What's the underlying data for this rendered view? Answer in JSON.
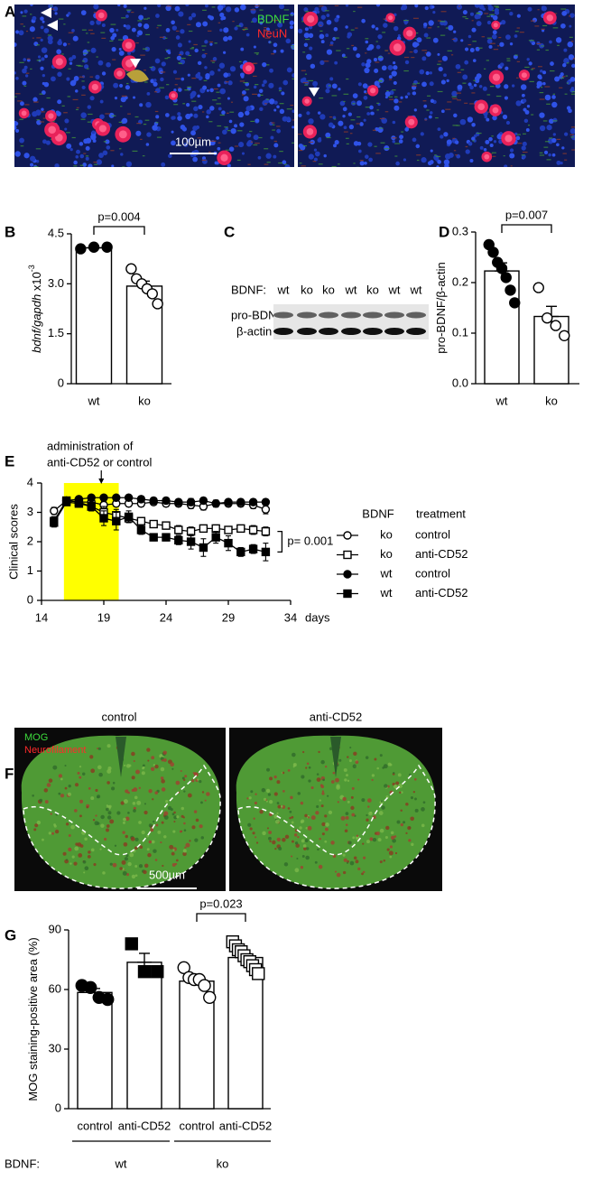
{
  "panel_a": {
    "label": "A",
    "stains": [
      "BDNF",
      "NeuN"
    ],
    "stain_colors": [
      "#3ddc3d",
      "#ff2a2a"
    ],
    "scale_bar": "100µm"
  },
  "blot_c": {
    "label": "C",
    "header": "BDNF:",
    "lanes": [
      "wt",
      "ko",
      "ko",
      "wt",
      "ko",
      "wt",
      "wt"
    ],
    "rows": [
      "pro-BDNF",
      "β-actin"
    ]
  },
  "panel_f": {
    "label": "F",
    "conditions": [
      "control",
      "anti-CD52"
    ],
    "stains": [
      "MOG",
      "Neurofilament"
    ],
    "stain_colors": [
      "#3ddc3d",
      "#ff2a2a"
    ],
    "scale_bar": "500µm"
  },
  "chart_data": [
    {
      "type": "bar",
      "panel": "B",
      "y_label": "bdnf/gapdh",
      "y_label_suffix": " x10",
      "y_label_sup": "-3",
      "categories": [
        "wt",
        "ko"
      ],
      "values": [
        4.08,
        2.93
      ],
      "errors": [
        0.02,
        0.15
      ],
      "points": [
        [
          4.05,
          4.1,
          4.1
        ],
        [
          3.45,
          3.15,
          3.0,
          2.85,
          2.7,
          2.4
        ]
      ],
      "filled": [
        true,
        false
      ],
      "markers": [
        "circle",
        "circle"
      ],
      "color": "#000000",
      "ylim": [
        0,
        4.5
      ],
      "yticks": [
        0,
        1.5,
        {
          "value": 3,
          "label": "3.0"
        },
        4.5
      ],
      "p_value": "p=0.004",
      "p_pair": [
        0,
        1
      ]
    },
    {
      "type": "bar",
      "panel": "D",
      "y_label": "pro-BDNF/β-actin",
      "categories": [
        "wt",
        "ko"
      ],
      "values": [
        0.223,
        0.133
      ],
      "errors": [
        0.016,
        0.02
      ],
      "points": [
        [
          0.275,
          0.26,
          0.24,
          0.228,
          0.21,
          0.185,
          0.16
        ],
        [
          0.19,
          0.13,
          0.115,
          0.095
        ]
      ],
      "filled": [
        true,
        false
      ],
      "markers": [
        "circle",
        "circle"
      ],
      "color": "#000000",
      "ylim": [
        0,
        0.3
      ],
      "yticks": [
        {
          "value": 0,
          "label": "0.0"
        },
        0.1,
        0.2,
        0.3
      ],
      "p_value": "p=0.007",
      "p_pair": [
        0,
        1
      ]
    },
    {
      "type": "line",
      "panel": "E",
      "y_label": "Clinical scores",
      "x_unit": "days",
      "annotation": [
        "administration of",
        "anti-CD52 or control"
      ],
      "arrow_x": 18.8,
      "highlight_x": [
        15.8,
        20.2
      ],
      "highlight_color": "#ffff00",
      "legend_headers": [
        "BDNF",
        "treatment"
      ],
      "p_value": "p= 0.001",
      "p_pair": [
        1,
        3
      ],
      "x": [
        15,
        16,
        17,
        18,
        19,
        20,
        21,
        22,
        23,
        24,
        25,
        26,
        27,
        28,
        29,
        30,
        31,
        32
      ],
      "xlim": [
        14,
        34
      ],
      "xticks": [
        14,
        19,
        24,
        29,
        34
      ],
      "ylim": [
        0,
        4
      ],
      "yticks": [
        0,
        1,
        2,
        3,
        4
      ],
      "series": [
        {
          "bdnf": "ko",
          "treatment": "control",
          "marker": "circle",
          "filled": false,
          "color": "#000000",
          "values": [
            3.05,
            3.4,
            3.35,
            3.35,
            3.25,
            3.3,
            3.3,
            3.3,
            3.35,
            3.3,
            3.3,
            3.25,
            3.2,
            3.3,
            3.3,
            3.3,
            3.25,
            3.1
          ],
          "errors": [
            0.12,
            0.08,
            0.1,
            0.1,
            0.12,
            0.1,
            0.1,
            0.1,
            0.1,
            0.1,
            0.1,
            0.12,
            0.12,
            0.1,
            0.1,
            0.1,
            0.12,
            0.15
          ]
        },
        {
          "bdnf": "ko",
          "treatment": "anti-CD52",
          "marker": "square",
          "filled": false,
          "color": "#000000",
          "values": [
            2.7,
            3.4,
            3.35,
            3.2,
            3.0,
            2.9,
            2.8,
            2.7,
            2.6,
            2.55,
            2.4,
            2.35,
            2.45,
            2.45,
            2.4,
            2.45,
            2.4,
            2.35
          ],
          "errors": [
            0.15,
            0.08,
            0.1,
            0.15,
            0.2,
            0.2,
            0.15,
            0.12,
            0.12,
            0.12,
            0.15,
            0.15,
            0.12,
            0.12,
            0.12,
            0.12,
            0.15,
            0.15
          ]
        },
        {
          "bdnf": "wt",
          "treatment": "control",
          "marker": "circle",
          "filled": true,
          "color": "#000000",
          "values": [
            2.7,
            3.4,
            3.45,
            3.5,
            3.5,
            3.5,
            3.5,
            3.45,
            3.4,
            3.4,
            3.35,
            3.35,
            3.4,
            3.3,
            3.35,
            3.35,
            3.35,
            3.35
          ],
          "errors": [
            0.15,
            0.08,
            0.08,
            0.08,
            0.08,
            0.08,
            0.08,
            0.1,
            0.1,
            0.1,
            0.1,
            0.12,
            0.1,
            0.12,
            0.1,
            0.1,
            0.1,
            0.1
          ]
        },
        {
          "bdnf": "wt",
          "treatment": "anti-CD52",
          "marker": "square",
          "filled": true,
          "color": "#000000",
          "values": [
            2.65,
            3.35,
            3.3,
            3.2,
            2.8,
            2.7,
            2.85,
            2.4,
            2.15,
            2.15,
            2.05,
            2.0,
            1.8,
            2.15,
            1.95,
            1.65,
            1.75,
            1.65
          ],
          "errors": [
            0.15,
            0.1,
            0.12,
            0.15,
            0.25,
            0.3,
            0.2,
            0.15,
            0.12,
            0.12,
            0.15,
            0.25,
            0.3,
            0.2,
            0.25,
            0.15,
            0.15,
            0.3
          ]
        }
      ]
    },
    {
      "type": "bar",
      "panel": "G",
      "y_label": "MOG staining-positive area (%)",
      "categories": [
        "control",
        "anti-CD52",
        "control",
        "anti-CD52"
      ],
      "values": [
        58.5,
        73.7,
        64.2,
        76.1
      ],
      "errors": [
        2,
        4.5,
        2,
        1.8
      ],
      "points": [
        [
          62,
          61,
          56,
          55
        ],
        [
          83,
          69,
          69
        ],
        [
          71,
          66,
          65,
          65,
          62,
          56
        ],
        [
          84,
          82,
          80,
          79,
          77,
          75,
          74,
          72,
          70,
          68
        ]
      ],
      "filled": [
        true,
        true,
        false,
        false
      ],
      "markers": [
        "circle",
        "square",
        "circle",
        "square"
      ],
      "color": "#000000",
      "groups": {
        "label": "BDNF:",
        "names": [
          "wt",
          "ko"
        ]
      },
      "ylim": [
        0,
        90
      ],
      "yticks": [
        0,
        30,
        60,
        90
      ],
      "p_value": "p=0.023",
      "p_pair": [
        2,
        3
      ]
    }
  ]
}
